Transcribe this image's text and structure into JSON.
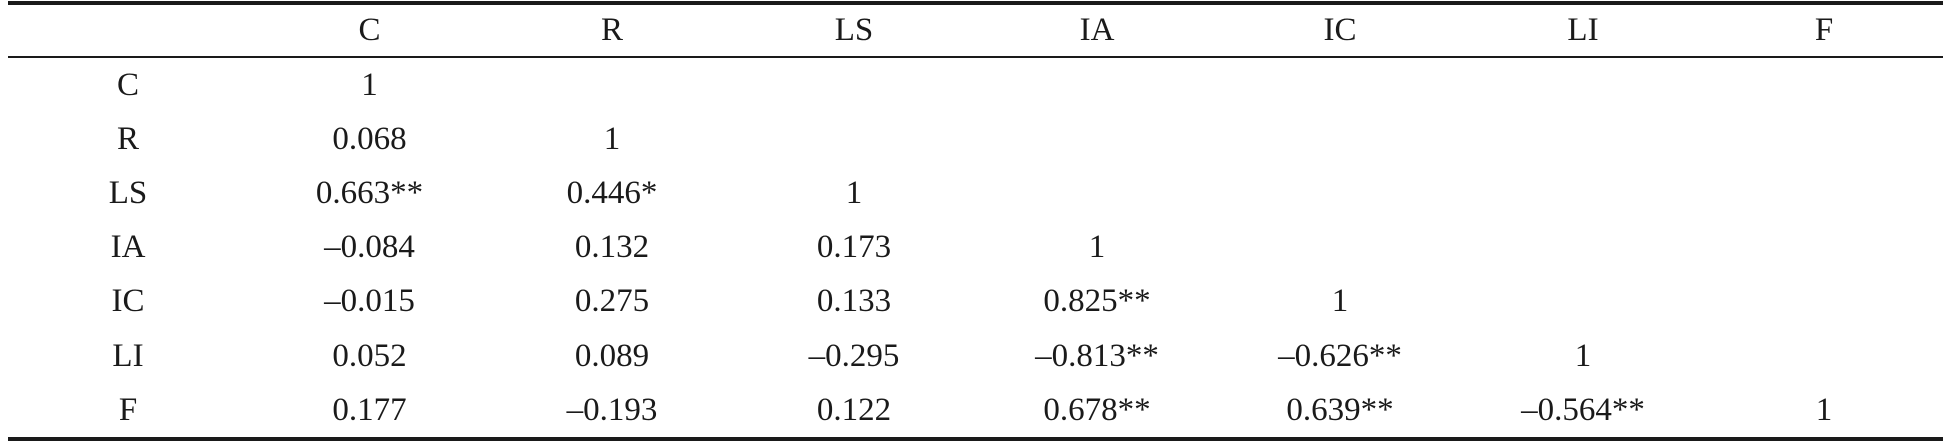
{
  "table": {
    "columns": [
      "",
      "C",
      "R",
      "LS",
      "IA",
      "IC",
      "LI",
      "F"
    ],
    "rows": [
      [
        "C",
        "1",
        "",
        "",
        "",
        "",
        "",
        ""
      ],
      [
        "R",
        "0.068",
        "1",
        "",
        "",
        "",
        "",
        ""
      ],
      [
        "LS",
        "0.663**",
        "0.446*",
        "1",
        "",
        "",
        "",
        ""
      ],
      [
        "IA",
        "–0.084",
        "0.132",
        "0.173",
        "1",
        "",
        "",
        ""
      ],
      [
        "IC",
        "–0.015",
        "0.275",
        "0.133",
        "0.825**",
        "1",
        "",
        ""
      ],
      [
        "LI",
        "0.052",
        "0.089",
        "–0.295",
        "–0.813**",
        "–0.626**",
        "1",
        ""
      ],
      [
        "F",
        "0.177",
        "–0.193",
        "0.122",
        "0.678**",
        "0.639**",
        "–0.564**",
        "1"
      ]
    ]
  }
}
